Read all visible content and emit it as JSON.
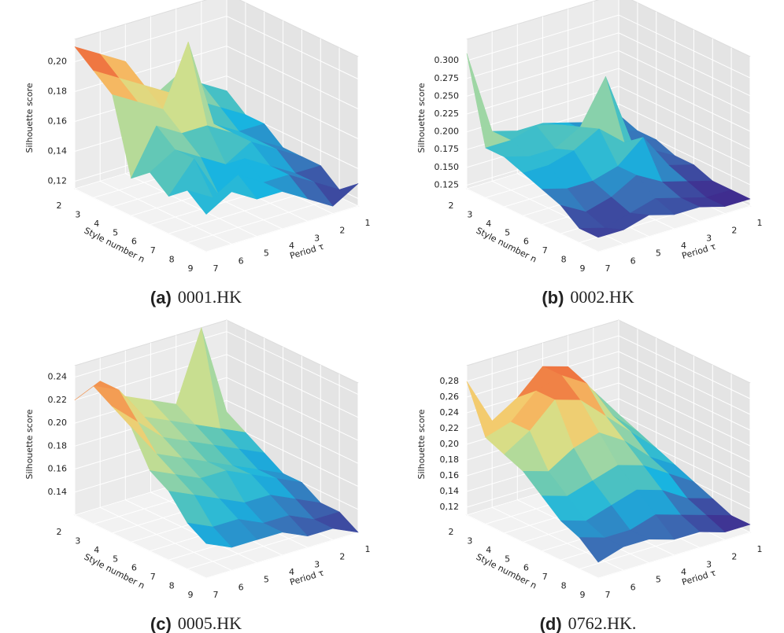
{
  "chart_data": [
    {
      "type": "surface",
      "label": "(a)",
      "caption": "0001.HK",
      "zlabel": "Silhouette score",
      "xlabel": "Style number n",
      "ylabel": "Period τ",
      "x": [
        2,
        3,
        4,
        5,
        6,
        7,
        8,
        9
      ],
      "y": [
        1,
        2,
        3,
        4,
        5,
        6,
        7
      ],
      "xlim": [
        2,
        9
      ],
      "ylim": [
        1,
        7
      ],
      "xticks": [
        2,
        3,
        4,
        5,
        6,
        7,
        8,
        9
      ],
      "yticks": [
        1,
        2,
        3,
        4,
        5,
        6,
        7
      ],
      "zlim": [
        0.115,
        0.215
      ],
      "zticks": [
        {
          "value": 0.12,
          "label": "0,12"
        },
        {
          "value": 0.14,
          "label": "0,14"
        },
        {
          "value": 0.16,
          "label": "0,16"
        },
        {
          "value": 0.18,
          "label": "0,18"
        },
        {
          "value": 0.2,
          "label": "0,20"
        }
      ],
      "colormap": [
        "#3f2d8f",
        "#3b6fb6",
        "#19b4e0",
        "#5cc6b8",
        "#9ed6a4",
        "#d4e08a",
        "#f7c86a",
        "#f08246",
        "#e41e1e"
      ],
      "values": [
        [
          0.15,
          0.16,
          0.17,
          0.16,
          0.19,
          0.2,
          0.21
        ],
        [
          0.14,
          0.15,
          0.16,
          0.17,
          0.18,
          0.19,
          0.2
        ],
        [
          0.14,
          0.14,
          0.15,
          0.21,
          0.17,
          0.18,
          0.19
        ],
        [
          0.13,
          0.14,
          0.15,
          0.16,
          0.16,
          0.17,
          0.14
        ],
        [
          0.13,
          0.14,
          0.15,
          0.14,
          0.15,
          0.16,
          0.15
        ],
        [
          0.13,
          0.13,
          0.14,
          0.15,
          0.13,
          0.16,
          0.14
        ],
        [
          0.12,
          0.13,
          0.14,
          0.14,
          0.15,
          0.14,
          0.15
        ],
        [
          0.13,
          0.12,
          0.13,
          0.14,
          0.14,
          0.15,
          0.14
        ]
      ]
    },
    {
      "type": "surface",
      "label": "(b)",
      "caption": "0002.HK",
      "zlabel": "Silhouette score",
      "xlabel": "Style number n",
      "ylabel": "Period τ",
      "x": [
        2,
        3,
        4,
        5,
        6,
        7,
        8,
        9
      ],
      "y": [
        1,
        2,
        3,
        4,
        5,
        6,
        7
      ],
      "xlim": [
        2,
        9
      ],
      "ylim": [
        1,
        7
      ],
      "xticks": [
        2,
        3,
        4,
        5,
        6,
        7,
        8,
        9
      ],
      "yticks": [
        1,
        2,
        3,
        4,
        5,
        6,
        7
      ],
      "zlim": [
        0.12,
        0.33
      ],
      "zticks": [
        {
          "value": 0.125,
          "label": "0.125"
        },
        {
          "value": 0.15,
          "label": "0.150"
        },
        {
          "value": 0.175,
          "label": "0.175"
        },
        {
          "value": 0.2,
          "label": "0.200"
        },
        {
          "value": 0.225,
          "label": "0.225"
        },
        {
          "value": 0.25,
          "label": "0.250"
        },
        {
          "value": 0.275,
          "label": "0.275"
        },
        {
          "value": 0.3,
          "label": "0.300"
        }
      ],
      "colormap": [
        "#3f2d8f",
        "#3b6fb6",
        "#19b4e0",
        "#5cc6b8",
        "#9ed6a4",
        "#d4e08a",
        "#f7c86a",
        "#f08246",
        "#e41e1e"
      ],
      "values": [
        [
          0.16,
          0.16,
          0.17,
          0.18,
          0.18,
          0.19,
          0.31
        ],
        [
          0.15,
          0.16,
          0.17,
          0.19,
          0.2,
          0.19,
          0.19
        ],
        [
          0.15,
          0.16,
          0.26,
          0.2,
          0.18,
          0.18,
          0.19
        ],
        [
          0.14,
          0.16,
          0.18,
          0.21,
          0.19,
          0.18,
          0.18
        ],
        [
          0.14,
          0.15,
          0.2,
          0.17,
          0.16,
          0.16,
          0.17
        ],
        [
          0.13,
          0.14,
          0.15,
          0.17,
          0.15,
          0.14,
          0.16
        ],
        [
          0.13,
          0.13,
          0.14,
          0.15,
          0.14,
          0.13,
          0.14
        ],
        [
          0.13,
          0.13,
          0.14,
          0.14,
          0.15,
          0.14,
          0.14
        ]
      ]
    },
    {
      "type": "surface",
      "label": "(c)",
      "caption": "0005.HK",
      "zlabel": "Silhouette score",
      "xlabel": "Style number n",
      "ylabel": "Period τ",
      "x": [
        2,
        3,
        4,
        5,
        6,
        7,
        8,
        9
      ],
      "y": [
        1,
        2,
        3,
        4,
        5,
        6,
        7
      ],
      "xlim": [
        2,
        9
      ],
      "ylim": [
        1,
        7
      ],
      "xticks": [
        2,
        3,
        4,
        5,
        6,
        7,
        8,
        9
      ],
      "yticks": [
        1,
        2,
        3,
        4,
        5,
        6,
        7
      ],
      "zlim": [
        0.12,
        0.25
      ],
      "zticks": [
        0.14,
        0.16,
        0.18,
        {
          "value": 0.2,
          "label": "0.20"
        },
        0.22,
        0.24
      ],
      "colormap": [
        "#3f2d8f",
        "#3b6fb6",
        "#19b4e0",
        "#5cc6b8",
        "#9ed6a4",
        "#d4e08a",
        "#f7c86a",
        "#f08246",
        "#e41e1e"
      ],
      "values": [
        [
          0.17,
          0.25,
          0.19,
          0.2,
          0.21,
          0.23,
          0.22
        ],
        [
          0.16,
          0.17,
          0.18,
          0.19,
          0.2,
          0.23,
          0.24
        ],
        [
          0.15,
          0.16,
          0.17,
          0.18,
          0.19,
          0.21,
          0.23
        ],
        [
          0.14,
          0.15,
          0.16,
          0.17,
          0.18,
          0.19,
          0.22
        ],
        [
          0.14,
          0.15,
          0.16,
          0.17,
          0.17,
          0.18,
          0.19
        ],
        [
          0.13,
          0.14,
          0.15,
          0.15,
          0.16,
          0.17,
          0.18
        ],
        [
          0.13,
          0.13,
          0.14,
          0.14,
          0.15,
          0.15,
          0.16
        ],
        [
          0.12,
          0.13,
          0.13,
          0.14,
          0.14,
          0.14,
          0.15
        ]
      ]
    },
    {
      "type": "surface",
      "label": "(d)",
      "caption": "0762.HK.",
      "zlabel": "Silhouette score",
      "xlabel": "Style number n",
      "ylabel": "Period τ",
      "x": [
        2,
        3,
        4,
        5,
        6,
        7,
        8,
        9
      ],
      "y": [
        1,
        2,
        3,
        4,
        5,
        6,
        7
      ],
      "xlim": [
        2,
        9
      ],
      "ylim": [
        1,
        7
      ],
      "xticks": [
        2,
        3,
        4,
        5,
        6,
        7,
        8,
        9
      ],
      "yticks": [
        1,
        2,
        3,
        4,
        5,
        6,
        7
      ],
      "zlim": [
        0.11,
        0.3
      ],
      "zticks": [
        {
          "value": 0.12,
          "label": "0,12"
        },
        {
          "value": 0.14,
          "label": "0,14"
        },
        {
          "value": 0.16,
          "label": "0,16"
        },
        {
          "value": 0.18,
          "label": "0,18"
        },
        {
          "value": 0.2,
          "label": "0,20"
        },
        {
          "value": 0.22,
          "label": "0,22"
        },
        {
          "value": 0.24,
          "label": "0,24"
        },
        {
          "value": 0.26,
          "label": "0,26"
        },
        {
          "value": 0.28,
          "label": "0,28"
        }
      ],
      "colormap": [
        "#3f2d8f",
        "#3b6fb6",
        "#19b4e0",
        "#5cc6b8",
        "#9ed6a4",
        "#d4e08a",
        "#f7c86a",
        "#f08246",
        "#e41e1e"
      ],
      "values": [
        [
          0.18,
          0.22,
          0.26,
          0.27,
          0.24,
          0.22,
          0.28
        ],
        [
          0.17,
          0.2,
          0.25,
          0.27,
          0.26,
          0.23,
          0.22
        ],
        [
          0.16,
          0.19,
          0.22,
          0.25,
          0.26,
          0.23,
          0.21
        ],
        [
          0.15,
          0.17,
          0.2,
          0.22,
          0.21,
          0.19,
          0.2
        ],
        [
          0.14,
          0.16,
          0.18,
          0.19,
          0.18,
          0.17,
          0.18
        ],
        [
          0.13,
          0.14,
          0.16,
          0.17,
          0.16,
          0.15,
          0.16
        ],
        [
          0.12,
          0.13,
          0.14,
          0.15,
          0.14,
          0.14,
          0.15
        ],
        [
          0.12,
          0.12,
          0.13,
          0.13,
          0.14,
          0.14,
          0.13
        ]
      ]
    }
  ]
}
